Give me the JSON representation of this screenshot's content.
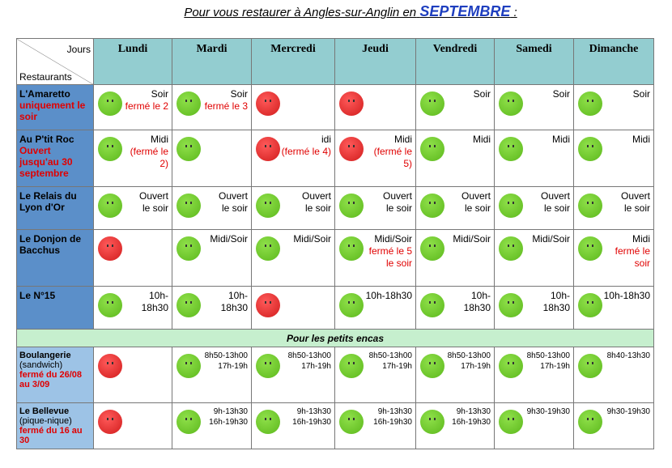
{
  "title": {
    "lead": "Pour vous restaurer à Angles-sur-Anglin en",
    "month": "SEPTEMBRE",
    "tail": ":"
  },
  "header": {
    "jours": "Jours",
    "restaurants": "Restaurants",
    "days": [
      "Lundi",
      "Mardi",
      "Mercredi",
      "Jeudi",
      "Vendredi",
      "Samedi",
      "Dimanche"
    ]
  },
  "rows": [
    {
      "name": "L'Amaretto",
      "note": "uniquement le soir",
      "cells": [
        {
          "lines": [
            "Soir"
          ],
          "note": "fermé le 2"
        },
        {
          "lines": [
            "Soir"
          ],
          "note": "fermé le 3"
        },
        {},
        {},
        {
          "lines": [
            "Soir"
          ]
        },
        {
          "lines": [
            "Soir"
          ]
        },
        {
          "lines": [
            "Soir"
          ]
        }
      ]
    },
    {
      "name": "Au P'tit Roc",
      "note": "Ouvert jusqu'au 30 septembre",
      "cells": [
        {
          "lines": [
            "Midi"
          ],
          "note": "(fermé le 2)"
        },
        {},
        {
          "lines": [
            "idi"
          ],
          "note": "(fermé le 4)"
        },
        {
          "lines": [
            "Midi"
          ],
          "note": "(fermé le 5)"
        },
        {
          "lines": [
            "Midi"
          ]
        },
        {
          "lines": [
            "Midi"
          ]
        },
        {
          "lines": [
            "Midi"
          ]
        }
      ]
    },
    {
      "name": "Le Relais du Lyon d'Or",
      "cells": [
        {
          "lines": [
            "Ouvert",
            "le soir"
          ]
        },
        {
          "lines": [
            "Ouvert",
            "le soir"
          ]
        },
        {
          "lines": [
            "Ouvert",
            "le soir"
          ]
        },
        {
          "lines": [
            "Ouvert",
            "le soir"
          ]
        },
        {
          "lines": [
            "Ouvert",
            "le soir"
          ]
        },
        {
          "lines": [
            "Ouvert",
            "le soir"
          ]
        },
        {
          "lines": [
            "Ouvert",
            "le soir"
          ]
        }
      ]
    },
    {
      "name": "Le Donjon de Bacchus",
      "cells": [
        {},
        {
          "lines": [
            "Midi/Soir"
          ]
        },
        {
          "lines": [
            "Midi/Soir"
          ]
        },
        {
          "lines": [
            "Midi/Soir"
          ],
          "note": "fermé le 5 le soir"
        },
        {
          "lines": [
            "Midi/Soir"
          ]
        },
        {
          "lines": [
            "Midi/Soir"
          ]
        },
        {
          "lines": [
            "Midi"
          ],
          "note": "fermé le soir"
        }
      ]
    },
    {
      "name": "Le N°15",
      "cells": [
        {
          "lines": [
            "10h-18h30"
          ]
        },
        {
          "lines": [
            "10h-18h30"
          ]
        },
        {},
        {
          "lines": [
            "10h-18h30"
          ]
        },
        {
          "lines": [
            "10h-18h30"
          ]
        },
        {
          "lines": [
            "10h-18h30"
          ]
        },
        {
          "lines": [
            "10h-18h30"
          ]
        }
      ]
    }
  ],
  "section": "Pour les petits encas",
  "snacks": [
    {
      "name": "Boulangerie",
      "sub": "(sandwich)",
      "note": "fermé du 26/08 au 3/09",
      "cells": [
        {},
        {
          "lines": [
            "8h50-13h00",
            "17h-19h"
          ]
        },
        {
          "lines": [
            "8h50-13h00",
            "17h-19h"
          ]
        },
        {
          "lines": [
            "8h50-13h00",
            "17h-19h"
          ]
        },
        {
          "lines": [
            "8h50-13h00",
            "17h-19h"
          ]
        },
        {
          "lines": [
            "8h50-13h00",
            "17h-19h"
          ]
        },
        {
          "lines": [
            "8h40-13h30"
          ]
        }
      ]
    },
    {
      "name": "Le Bellevue",
      "sub": "(pique-nique)",
      "note": "fermé du 16 au 30",
      "cells": [
        {},
        {
          "lines": [
            "9h-13h30",
            "16h-19h30"
          ]
        },
        {
          "lines": [
            "9h-13h30",
            "16h-19h30"
          ]
        },
        {
          "lines": [
            "9h-13h30",
            "16h-19h30"
          ]
        },
        {
          "lines": [
            "9h-13h30",
            "16h-19h30"
          ]
        },
        {
          "lines": [
            "9h30-19h30"
          ]
        },
        {
          "lines": [
            "9h30-19h30"
          ]
        }
      ]
    }
  ]
}
